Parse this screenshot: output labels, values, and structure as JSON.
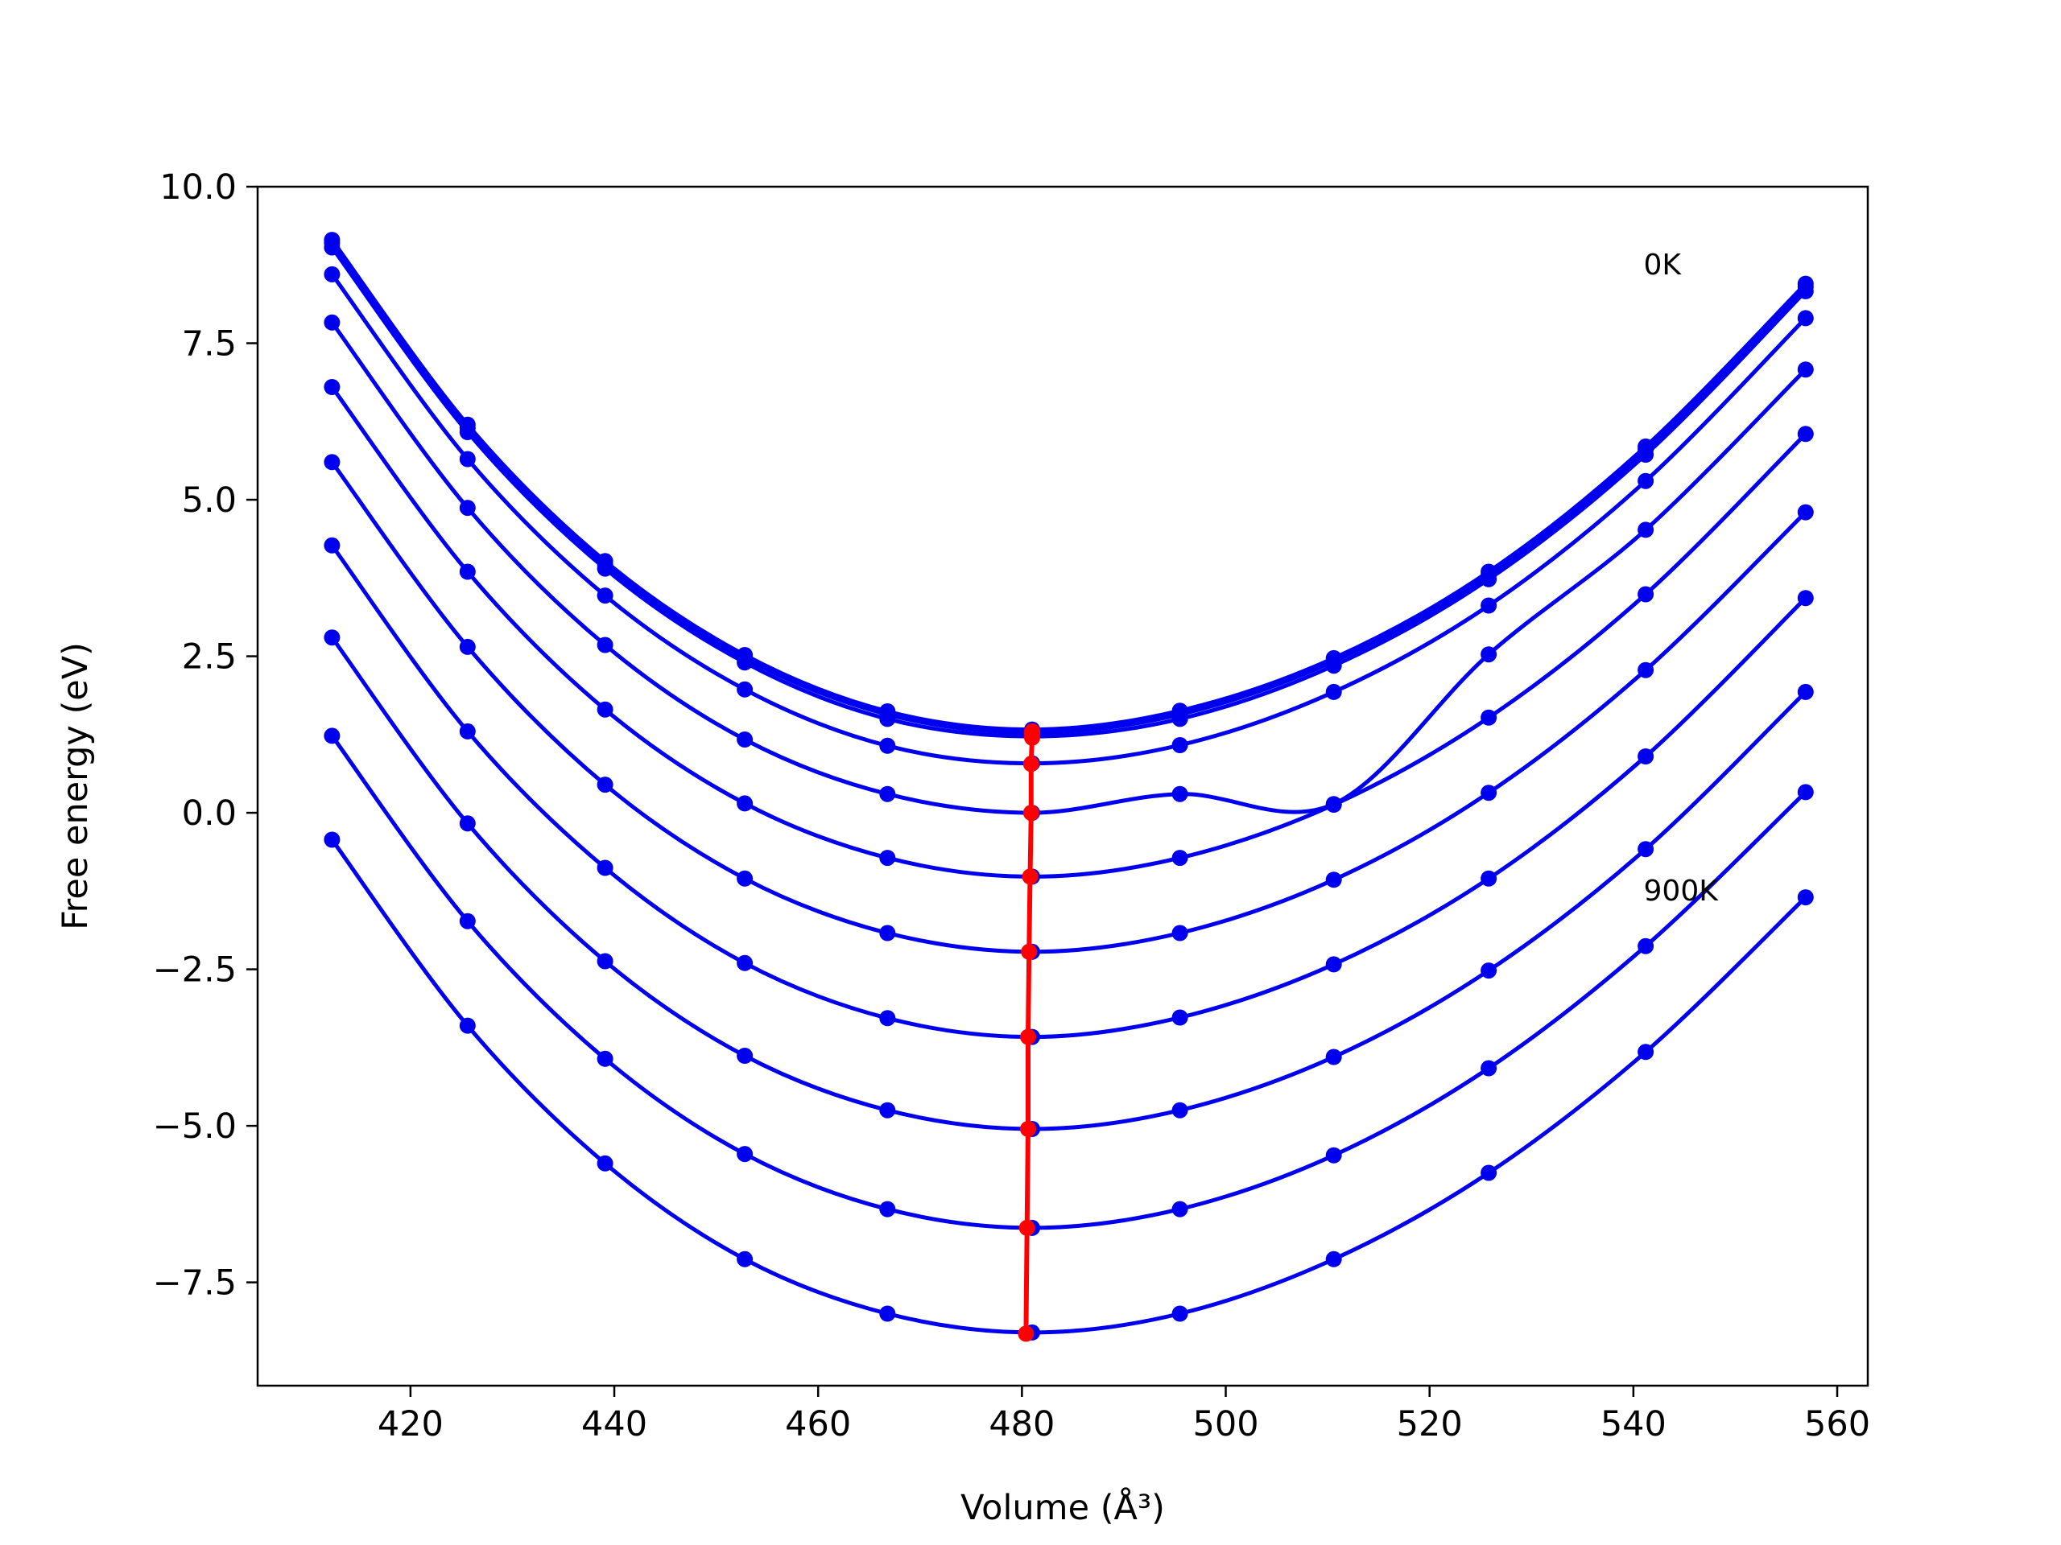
{
  "chart_data": {
    "type": "line",
    "xlabel": "Volume (Å³)",
    "ylabel": "Free energy (eV)",
    "xlim": [
      405,
      563
    ],
    "ylim": [
      -9.15,
      10.0
    ],
    "x_ticks": [
      420,
      440,
      460,
      480,
      500,
      520,
      540,
      560
    ],
    "x_tick_labels": [
      "420",
      "440",
      "460",
      "480",
      "500",
      "520",
      "540",
      "560"
    ],
    "y_ticks": [
      10.0,
      7.5,
      5.0,
      2.5,
      0.0,
      -2.5,
      -5.0,
      -7.5
    ],
    "y_tick_labels": [
      "10.0",
      "7.5",
      "5.0",
      "2.5",
      "0.0",
      "−2.5",
      "−5.0",
      "−7.5"
    ],
    "grid": false,
    "x_points": [
      412.3,
      425.6,
      439.1,
      452.8,
      466.8,
      481.0,
      495.5,
      510.6,
      525.8,
      541.2,
      556.9
    ],
    "series": [
      {
        "values": [
          9.15,
          6.2,
          4.02,
          2.52,
          1.62,
          1.33,
          1.63,
          2.47,
          3.85,
          5.85,
          8.45
        ]
      },
      {
        "values": [
          9.1,
          6.15,
          3.97,
          2.47,
          1.57,
          1.28,
          1.57,
          2.42,
          3.8,
          5.8,
          8.4
        ]
      },
      {
        "values": [
          9.03,
          6.08,
          3.9,
          2.4,
          1.5,
          1.22,
          1.5,
          2.35,
          3.73,
          5.72,
          8.33
        ]
      },
      {
        "values": [
          8.6,
          5.65,
          3.47,
          1.97,
          1.07,
          0.79,
          1.08,
          1.93,
          3.31,
          5.3,
          7.9
        ]
      },
      {
        "values": [
          7.83,
          4.87,
          2.68,
          1.17,
          0.3,
          0.0,
          0.3,
          0.14,
          2.53,
          4.52,
          7.08
        ]
      },
      {
        "values": [
          6.8,
          3.85,
          1.65,
          0.15,
          -0.72,
          -1.02,
          -0.72,
          0.13,
          1.52,
          3.49,
          6.05
        ]
      },
      {
        "values": [
          5.6,
          2.65,
          0.45,
          -1.05,
          -1.92,
          -2.22,
          -1.92,
          -1.07,
          0.32,
          2.28,
          4.8
        ]
      },
      {
        "values": [
          4.27,
          1.3,
          -0.88,
          -2.4,
          -3.28,
          -3.58,
          -3.27,
          -2.42,
          -1.05,
          0.9,
          3.43
        ]
      },
      {
        "values": [
          2.8,
          -0.17,
          -2.37,
          -3.88,
          -4.75,
          -5.05,
          -4.75,
          -3.9,
          -2.52,
          -0.58,
          1.93
        ]
      },
      {
        "values": [
          1.23,
          -1.73,
          -3.93,
          -5.45,
          -6.33,
          -6.63,
          -6.33,
          -5.47,
          -4.08,
          -2.13,
          0.33
        ]
      },
      {
        "values": [
          -0.43,
          -3.4,
          -5.6,
          -7.13,
          -8.0,
          -8.3,
          -8.0,
          -7.13,
          -5.75,
          -3.82,
          -1.35
        ]
      }
    ],
    "minima": {
      "x": [
        481.0,
        481.0,
        481.0,
        480.9,
        480.9,
        480.8,
        480.7,
        480.6,
        480.6,
        480.5,
        480.4
      ],
      "y": [
        1.3,
        1.26,
        1.2,
        0.78,
        0.0,
        -1.02,
        -2.22,
        -3.58,
        -5.05,
        -6.63,
        -8.32
      ]
    },
    "annotations": [
      {
        "text": "0K",
        "x": 541,
        "y": 8.6
      },
      {
        "text": "900K",
        "x": 541,
        "y": -1.4
      }
    ],
    "colors": {
      "curves": "#0000ee",
      "minima": "#ff0000"
    }
  }
}
